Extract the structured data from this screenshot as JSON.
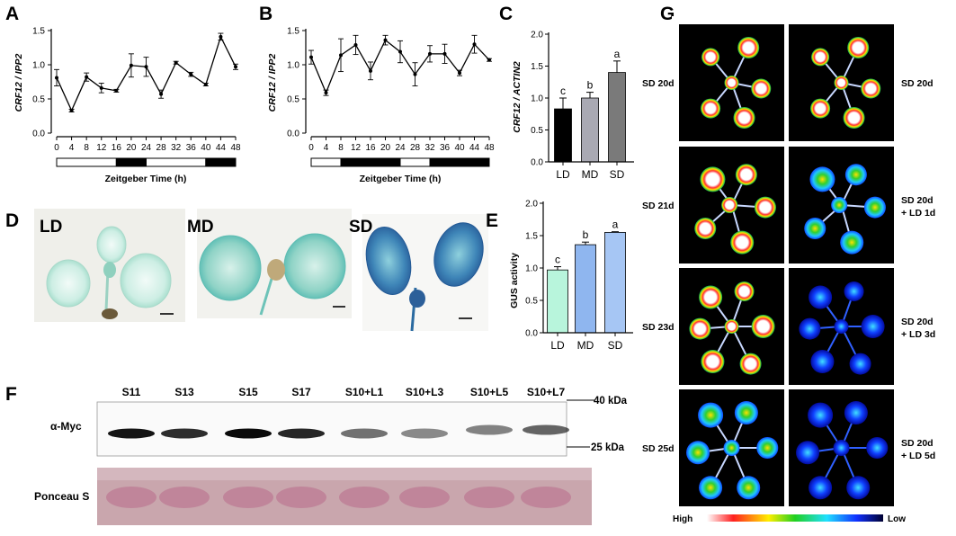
{
  "figure": {
    "A": {
      "panel_label": "A",
      "ylabel": "CRF12 / IPP2",
      "xlabel": "Zeitgeber Time (h)",
      "y_ticks": [
        "0.0",
        "0.5",
        "1.0",
        "1.5"
      ],
      "x_ticks": [
        "0",
        "4",
        "8",
        "12",
        "16",
        "20",
        "24",
        "28",
        "32",
        "36",
        "40",
        "44",
        "48"
      ],
      "photoperiod_bar": [
        {
          "from": 0,
          "to": 16,
          "state": "light"
        },
        {
          "from": 16,
          "to": 24,
          "state": "dark"
        },
        {
          "from": 24,
          "to": 40,
          "state": "light"
        },
        {
          "from": 40,
          "to": 48,
          "state": "dark"
        }
      ]
    },
    "B": {
      "panel_label": "B",
      "ylabel": "CRF12 / IPP2",
      "xlabel": "Zeitgeber Time (h)",
      "y_ticks": [
        "0.0",
        "0.5",
        "1.0",
        "1.5"
      ],
      "x_ticks": [
        "0",
        "4",
        "8",
        "12",
        "16",
        "20",
        "24",
        "28",
        "32",
        "36",
        "40",
        "44",
        "48"
      ],
      "photoperiod_bar": [
        {
          "from": 0,
          "to": 8,
          "state": "light"
        },
        {
          "from": 8,
          "to": 24,
          "state": "dark"
        },
        {
          "from": 24,
          "to": 32,
          "state": "light"
        },
        {
          "from": 32,
          "to": 48,
          "state": "dark"
        }
      ]
    },
    "C": {
      "panel_label": "C",
      "ylabel": "CRF12 / ACTIN2",
      "y_ticks": [
        "0.0",
        "0.5",
        "1.0",
        "1.5",
        "2.0"
      ],
      "categories": [
        "LD",
        "MD",
        "SD"
      ],
      "letters": [
        "c",
        "b",
        "a"
      ]
    },
    "D": {
      "panel_label": "D",
      "photo_labels": [
        "LD",
        "MD",
        "SD"
      ]
    },
    "E": {
      "panel_label": "E",
      "ylabel": "GUS activity",
      "y_ticks": [
        "0.0",
        "0.5",
        "1.0",
        "1.5",
        "2.0"
      ],
      "categories": [
        "LD",
        "MD",
        "SD"
      ],
      "letters": [
        "c",
        "b",
        "a"
      ]
    },
    "F": {
      "panel_label": "F",
      "lanes": [
        "S11",
        "S13",
        "S15",
        "S17",
        "S10+L1",
        "S10+L3",
        "S10+L5",
        "S10+L7"
      ],
      "row_labels": [
        "α-Myc",
        "Ponceau S"
      ],
      "markers": [
        "40 kDa",
        "25 kDa"
      ]
    },
    "G": {
      "panel_label": "G",
      "left_labels": [
        "SD 20d",
        "SD 21d",
        "SD 23d",
        "SD 25d"
      ],
      "right_labels": [
        [
          "SD 20d"
        ],
        [
          "SD 20d",
          "+ LD 1d"
        ],
        [
          "SD 20d",
          "+ LD 3d"
        ],
        [
          "SD 20d",
          "+ LD 5d"
        ]
      ],
      "scale_high": "High",
      "scale_low": "Low"
    }
  },
  "chart_data": [
    {
      "panel": "A",
      "type": "line",
      "xlabel": "Zeitgeber Time (h)",
      "ylabel": "CRF12 / IPP2",
      "ylim": [
        0,
        1.5
      ],
      "x": [
        0,
        4,
        8,
        12,
        16,
        20,
        24,
        28,
        32,
        36,
        40,
        44,
        48
      ],
      "y": [
        0.81,
        0.33,
        0.82,
        0.66,
        0.62,
        0.99,
        0.97,
        0.57,
        1.03,
        0.86,
        0.71,
        1.41,
        0.97
      ],
      "err": [
        0.12,
        0.02,
        0.06,
        0.07,
        0.02,
        0.17,
        0.14,
        0.06,
        0.02,
        0.03,
        0.02,
        0.05,
        0.04
      ]
    },
    {
      "panel": "B",
      "type": "line",
      "xlabel": "Zeitgeber Time (h)",
      "ylabel": "CRF12 / IPP2",
      "ylim": [
        0,
        1.5
      ],
      "x": [
        0,
        4,
        8,
        12,
        16,
        20,
        24,
        28,
        32,
        36,
        40,
        44,
        48
      ],
      "y": [
        1.11,
        0.59,
        1.14,
        1.29,
        0.91,
        1.36,
        1.19,
        0.86,
        1.16,
        1.16,
        0.88,
        1.3,
        1.07
      ],
      "err": [
        0.1,
        0.04,
        0.24,
        0.14,
        0.13,
        0.07,
        0.16,
        0.17,
        0.12,
        0.14,
        0.04,
        0.13,
        0.02
      ]
    },
    {
      "panel": "C",
      "type": "bar",
      "ylabel": "CRF12 / ACTIN2",
      "ylim": [
        0,
        2.0
      ],
      "categories": [
        "LD",
        "MD",
        "SD"
      ],
      "values": [
        0.83,
        1.0,
        1.4
      ],
      "err": [
        0.17,
        0.09,
        0.18
      ],
      "colors": [
        "#000000",
        "#a9a9b3",
        "#7a7a7a"
      ]
    },
    {
      "panel": "E",
      "type": "bar",
      "ylabel": "GUS activity",
      "ylim": [
        0,
        2.0
      ],
      "categories": [
        "LD",
        "MD",
        "SD"
      ],
      "values": [
        0.97,
        1.36,
        1.55
      ],
      "err": [
        0.05,
        0.04,
        0.01
      ],
      "colors": [
        "#b8f5dc",
        "#8fb6ef",
        "#a6c6f4"
      ]
    }
  ]
}
